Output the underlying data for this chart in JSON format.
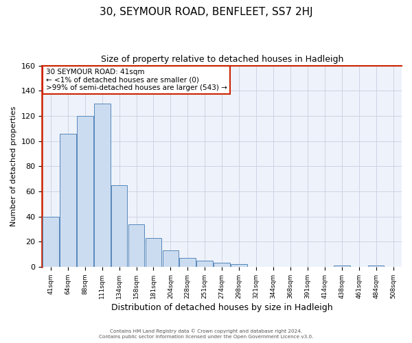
{
  "title": "30, SEYMOUR ROAD, BENFLEET, SS7 2HJ",
  "subtitle": "Size of property relative to detached houses in Hadleigh",
  "xlabel": "Distribution of detached houses by size in Hadleigh",
  "ylabel": "Number of detached properties",
  "bar_labels": [
    "41sqm",
    "64sqm",
    "88sqm",
    "111sqm",
    "134sqm",
    "158sqm",
    "181sqm",
    "204sqm",
    "228sqm",
    "251sqm",
    "274sqm",
    "298sqm",
    "321sqm",
    "344sqm",
    "368sqm",
    "391sqm",
    "414sqm",
    "438sqm",
    "461sqm",
    "484sqm",
    "508sqm"
  ],
  "bar_values": [
    40,
    106,
    120,
    130,
    65,
    34,
    23,
    13,
    7,
    5,
    3,
    2,
    0,
    0,
    0,
    0,
    0,
    1,
    0,
    1,
    0
  ],
  "bar_color": "#ccdcf0",
  "bar_edge_color": "#5588bb",
  "highlight_color": "#cc2200",
  "ylim": [
    0,
    160
  ],
  "yticks": [
    0,
    20,
    40,
    60,
    80,
    100,
    120,
    140,
    160
  ],
  "annotation_title": "30 SEYMOUR ROAD: 41sqm",
  "annotation_line1": "← <1% of detached houses are smaller (0)",
  "annotation_line2": ">99% of semi-detached houses are larger (543) →",
  "annotation_box_color": "#ffffff",
  "annotation_box_edge": "#cc2200",
  "footer_line1": "Contains HM Land Registry data © Crown copyright and database right 2024.",
  "footer_line2": "Contains public sector information licensed under the Open Government Licence v3.0.",
  "bg_color": "#ffffff",
  "plot_bg_color": "#eef2fa",
  "grid_color": "#c8cfe0",
  "title_fontsize": 11,
  "subtitle_fontsize": 9,
  "ylabel_fontsize": 8,
  "xlabel_fontsize": 9
}
